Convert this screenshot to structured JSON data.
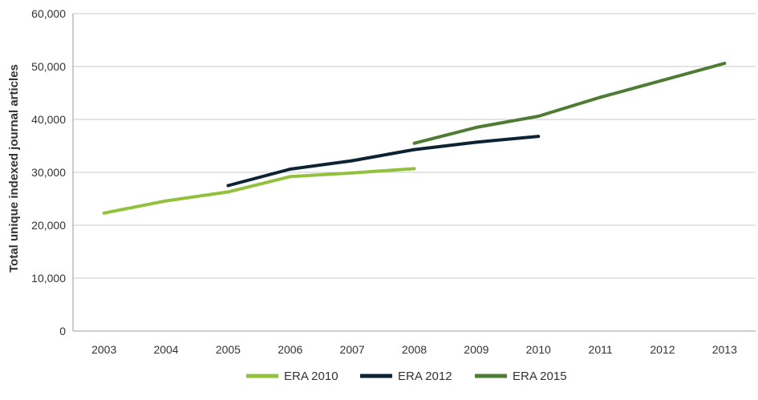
{
  "chart_data": {
    "type": "line",
    "title": "",
    "xlabel": "",
    "ylabel": "Total unique indexed journal articles",
    "categories": [
      "2003",
      "2004",
      "2005",
      "2006",
      "2007",
      "2008",
      "2009",
      "2010",
      "2011",
      "2012",
      "2013"
    ],
    "ylim": [
      0,
      60000
    ],
    "yticks": [
      0,
      10000,
      20000,
      30000,
      40000,
      50000,
      60000
    ],
    "ytick_labels": [
      "0",
      "10,000",
      "20,000",
      "30,000",
      "40,000",
      "50,000",
      "60,000"
    ],
    "grid": true,
    "legend_position": "bottom",
    "series": [
      {
        "name": "ERA 2010",
        "color": "#92c13e",
        "values": [
          22300,
          24600,
          26300,
          29200,
          29900,
          30700,
          null,
          null,
          null,
          null,
          null
        ]
      },
      {
        "name": "ERA 2012",
        "color": "#0d2233",
        "values": [
          null,
          null,
          27500,
          30600,
          32200,
          34300,
          35700,
          36800,
          null,
          null,
          null
        ]
      },
      {
        "name": "ERA 2015",
        "color": "#4e7c35",
        "values": [
          null,
          null,
          null,
          null,
          null,
          35500,
          38500,
          40600,
          44200,
          47400,
          50600
        ]
      }
    ]
  }
}
